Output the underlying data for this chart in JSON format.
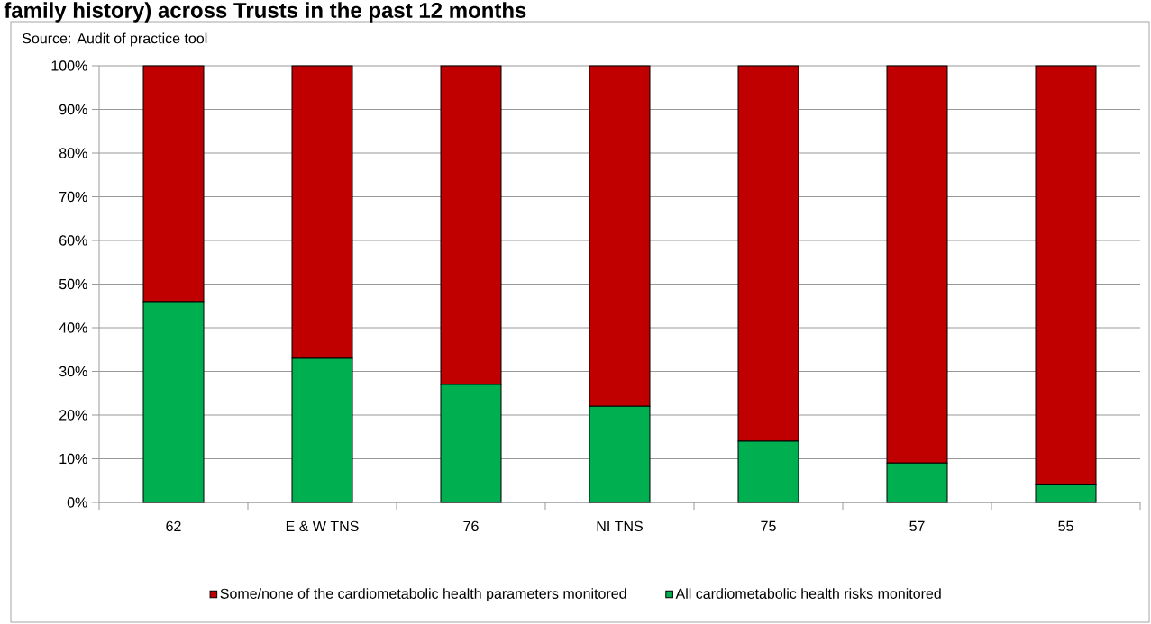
{
  "chart_data": {
    "type": "bar",
    "title": "family history) across Trusts in the past 12 months",
    "annotations": [
      "Source: Audit of practice tool"
    ],
    "categories": [
      "62",
      "E & W TNS",
      "76",
      "NI TNS",
      "75",
      "57",
      "55"
    ],
    "stacked": true,
    "series": [
      {
        "name": "All cardiometabolic health risks monitored",
        "color": "#00b050",
        "values": [
          46,
          33,
          27,
          22,
          14,
          9,
          4
        ]
      },
      {
        "name": "Some/none of the cardiometabolic health parameters monitored",
        "color": "#c00000",
        "values": [
          54,
          67,
          73,
          78,
          86,
          91,
          96
        ]
      }
    ],
    "ylim": [
      0,
      100
    ],
    "yticks": [
      {
        "value": 0,
        "label": "0%"
      },
      {
        "value": 10,
        "label": "10%"
      },
      {
        "value": 20,
        "label": "20%"
      },
      {
        "value": 30,
        "label": "30%"
      },
      {
        "value": 40,
        "label": "40%"
      },
      {
        "value": 50,
        "label": "50%"
      },
      {
        "value": 60,
        "label": "60%"
      },
      {
        "value": 70,
        "label": "70%"
      },
      {
        "value": 80,
        "label": "80%"
      },
      {
        "value": 90,
        "label": "90%"
      },
      {
        "value": 100,
        "label": "100%"
      }
    ],
    "grid": "y",
    "legend": "bottom"
  }
}
